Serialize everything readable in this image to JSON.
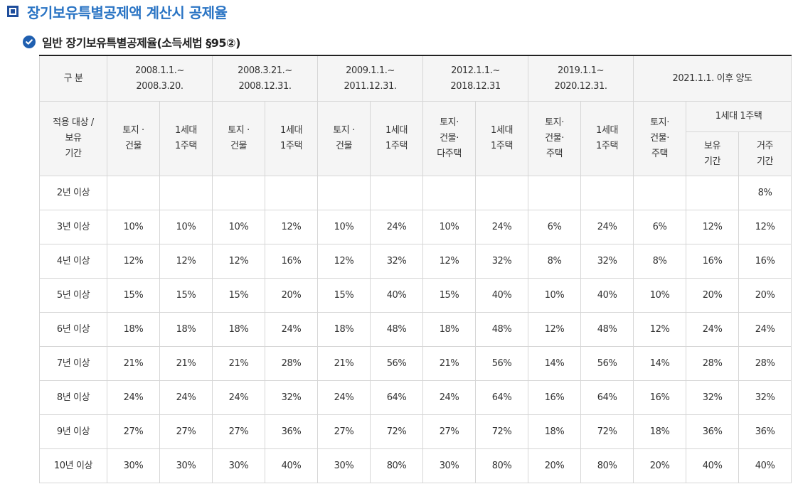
{
  "title": "장기보유특별공제액 계산시 공제율",
  "subtitle": "일반 장기보유특별공제율(소득세법 §95②)",
  "header": {
    "corner": "구 분",
    "periods": [
      "2008.1.1.~\n2008.3.20.",
      "2008.3.21.~\n2008.12.31.",
      "2009.1.1.~\n2011.12.31.",
      "2012.1.1.~\n2018.12.31",
      "2019.1.1~\n2020.12.31.",
      "2021.1.1. 이후 양도"
    ],
    "target_label": "적용 대상 /\n보유\n기간",
    "sub": [
      "토지 ·\n건물",
      "1세대\n1주택",
      "토지 ·\n건물",
      "1세대\n1주택",
      "토지 ·\n건물",
      "1세대\n1주택",
      "토지·\n건물·\n다주택",
      "1세대\n1주택",
      "토지·\n건물·\n주택",
      "1세대\n1주택",
      "토지·\n건물·\n주택"
    ],
    "one_house": "1세대 1주택",
    "hold_period": "보유\n기간",
    "reside_period": "거주\n기간"
  },
  "rows": [
    {
      "label": "2년 이상",
      "values": [
        "",
        "",
        "",
        "",
        "",
        "",
        "",
        "",
        "",
        "",
        "",
        "",
        "8%"
      ]
    },
    {
      "label": "3년 이상",
      "values": [
        "10%",
        "10%",
        "10%",
        "12%",
        "10%",
        "24%",
        "10%",
        "24%",
        "6%",
        "24%",
        "6%",
        "12%",
        "12%"
      ]
    },
    {
      "label": "4년 이상",
      "values": [
        "12%",
        "12%",
        "12%",
        "16%",
        "12%",
        "32%",
        "12%",
        "32%",
        "8%",
        "32%",
        "8%",
        "16%",
        "16%"
      ]
    },
    {
      "label": "5년 이상",
      "values": [
        "15%",
        "15%",
        "15%",
        "20%",
        "15%",
        "40%",
        "15%",
        "40%",
        "10%",
        "40%",
        "10%",
        "20%",
        "20%"
      ]
    },
    {
      "label": "6년 이상",
      "values": [
        "18%",
        "18%",
        "18%",
        "24%",
        "18%",
        "48%",
        "18%",
        "48%",
        "12%",
        "48%",
        "12%",
        "24%",
        "24%"
      ]
    },
    {
      "label": "7년 이상",
      "values": [
        "21%",
        "21%",
        "21%",
        "28%",
        "21%",
        "56%",
        "21%",
        "56%",
        "14%",
        "56%",
        "14%",
        "28%",
        "28%"
      ]
    },
    {
      "label": "8년 이상",
      "values": [
        "24%",
        "24%",
        "24%",
        "32%",
        "24%",
        "64%",
        "24%",
        "64%",
        "16%",
        "64%",
        "16%",
        "32%",
        "32%"
      ]
    },
    {
      "label": "9년 이상",
      "values": [
        "27%",
        "27%",
        "27%",
        "36%",
        "27%",
        "72%",
        "27%",
        "72%",
        "18%",
        "72%",
        "18%",
        "36%",
        "36%"
      ]
    },
    {
      "label": "10년 이상",
      "values": [
        "30%",
        "30%",
        "30%",
        "40%",
        "30%",
        "80%",
        "30%",
        "80%",
        "20%",
        "80%",
        "20%",
        "40%",
        "40%"
      ]
    }
  ]
}
